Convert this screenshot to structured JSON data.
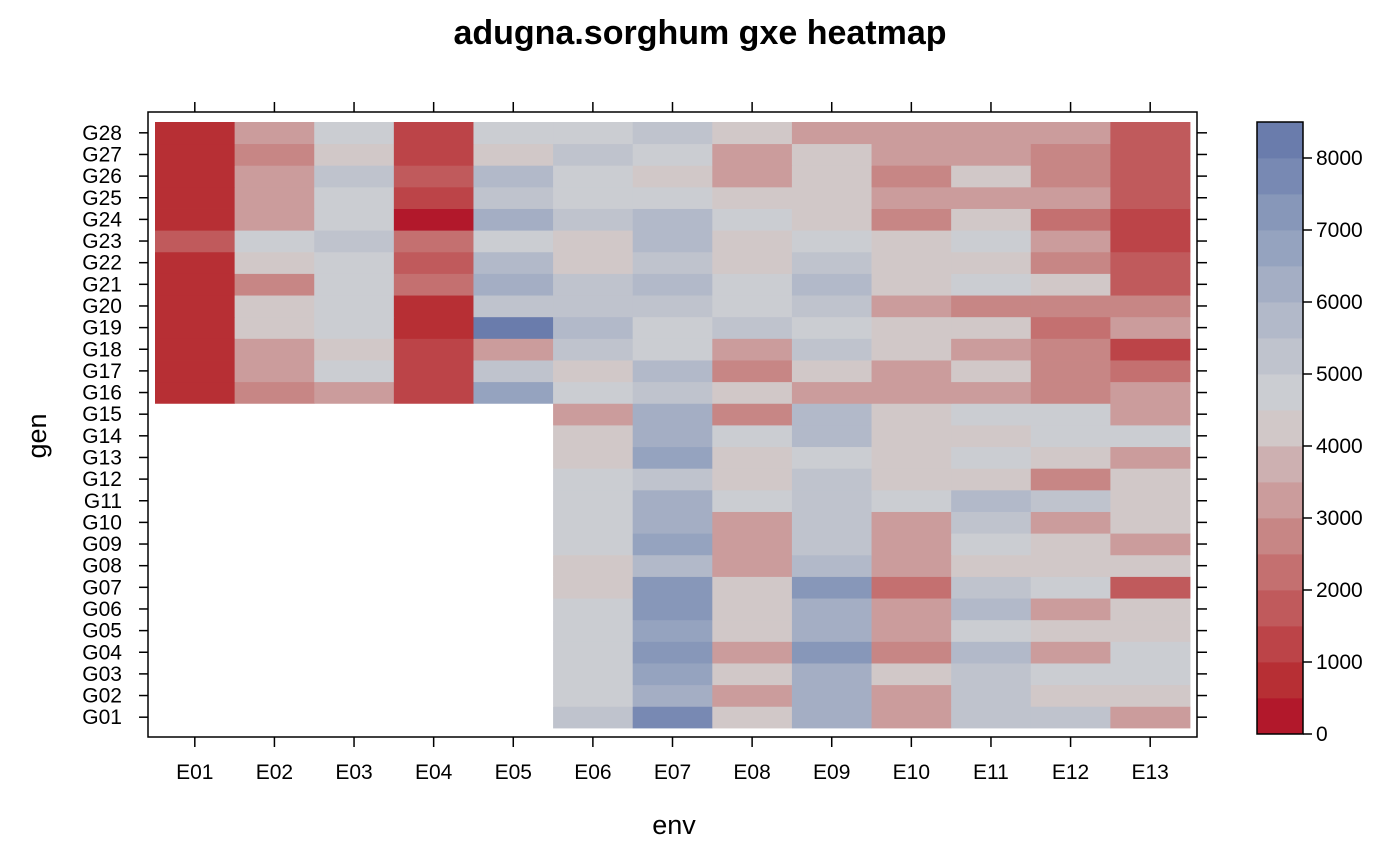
{
  "chart_data": {
    "type": "heatmap",
    "title": "adugna.sorghum gxe heatmap",
    "xlabel": "env",
    "ylabel": "gen",
    "x_categories": [
      "E01",
      "E02",
      "E03",
      "E04",
      "E05",
      "E06",
      "E07",
      "E08",
      "E09",
      "E10",
      "E11",
      "E12",
      "E13"
    ],
    "y_categories": [
      "G01",
      "G02",
      "G03",
      "G04",
      "G05",
      "G06",
      "G07",
      "G08",
      "G09",
      "G10",
      "G11",
      "G12",
      "G13",
      "G14",
      "G15",
      "G16",
      "G17",
      "G18",
      "G19",
      "G20",
      "G21",
      "G22",
      "G23",
      "G24",
      "G25",
      "G26",
      "G27",
      "G28"
    ],
    "values": [
      [
        null,
        null,
        null,
        null,
        null,
        5100,
        7900,
        4400,
        6300,
        3300,
        5100,
        5100,
        3300
      ],
      [
        null,
        null,
        null,
        null,
        null,
        4700,
        6300,
        3300,
        6300,
        3300,
        5100,
        4100,
        4100
      ],
      [
        null,
        null,
        null,
        null,
        null,
        4700,
        6800,
        4100,
        6300,
        4100,
        5100,
        4700,
        4700
      ],
      [
        null,
        null,
        null,
        null,
        null,
        4700,
        7300,
        3300,
        7300,
        2800,
        5600,
        3300,
        4700
      ],
      [
        null,
        null,
        null,
        null,
        null,
        4700,
        6800,
        4100,
        6300,
        3300,
        4700,
        4100,
        4100
      ],
      [
        null,
        null,
        null,
        null,
        null,
        4700,
        7300,
        4100,
        6300,
        3300,
        5600,
        3300,
        4100
      ],
      [
        null,
        null,
        null,
        null,
        null,
        4100,
        7300,
        4100,
        7300,
        2300,
        5100,
        4700,
        1800
      ],
      [
        null,
        null,
        null,
        null,
        null,
        4100,
        5600,
        3300,
        5600,
        3300,
        4100,
        4100,
        4100
      ],
      [
        null,
        null,
        null,
        null,
        null,
        4700,
        6800,
        3300,
        5100,
        3300,
        4700,
        4100,
        3300
      ],
      [
        null,
        null,
        null,
        null,
        null,
        4700,
        6300,
        3300,
        5100,
        3300,
        5100,
        3300,
        4100
      ],
      [
        null,
        null,
        null,
        null,
        null,
        4700,
        6300,
        4700,
        5100,
        4700,
        5600,
        5100,
        4100
      ],
      [
        null,
        null,
        null,
        null,
        null,
        4700,
        5100,
        4100,
        5100,
        4100,
        4100,
        2800,
        4100
      ],
      [
        null,
        null,
        null,
        null,
        null,
        4100,
        6800,
        4100,
        4700,
        4100,
        4700,
        4100,
        3300
      ],
      [
        null,
        null,
        null,
        null,
        null,
        4100,
        6300,
        4700,
        5600,
        4100,
        4100,
        4700,
        4700
      ],
      [
        null,
        null,
        null,
        null,
        null,
        3300,
        6300,
        2800,
        5600,
        4100,
        4700,
        4700,
        3300
      ],
      [
        600,
        2800,
        3300,
        1300,
        6800,
        4700,
        5100,
        4100,
        3300,
        3300,
        3300,
        2800,
        3300
      ],
      [
        600,
        3300,
        4700,
        1300,
        5100,
        4100,
        5600,
        2800,
        4100,
        3300,
        4100,
        2800,
        2300
      ],
      [
        600,
        3300,
        4100,
        1300,
        3300,
        5100,
        4700,
        3300,
        5100,
        4100,
        3300,
        2800,
        1300
      ],
      [
        600,
        4100,
        4700,
        600,
        8300,
        5600,
        4700,
        5100,
        4700,
        4100,
        4100,
        2300,
        3300
      ],
      [
        600,
        4100,
        4700,
        600,
        5100,
        5100,
        5100,
        4700,
        5100,
        3300,
        2800,
        2800,
        2800
      ],
      [
        600,
        2800,
        4700,
        2300,
        6300,
        5100,
        5600,
        4700,
        5600,
        4100,
        4700,
        4100,
        1800
      ],
      [
        600,
        4100,
        4700,
        1800,
        5600,
        4100,
        5100,
        4100,
        5100,
        4100,
        4100,
        2800,
        1800
      ],
      [
        1800,
        4700,
        5100,
        2300,
        4700,
        4100,
        5600,
        4100,
        4700,
        4100,
        4700,
        3300,
        1300
      ],
      [
        600,
        3300,
        4700,
        100,
        6300,
        5100,
        5600,
        4700,
        4100,
        2800,
        4100,
        2300,
        1300
      ],
      [
        600,
        3300,
        4700,
        1300,
        5100,
        4700,
        4700,
        4100,
        4100,
        3300,
        3300,
        3300,
        1800
      ],
      [
        600,
        3300,
        5100,
        1800,
        5600,
        4700,
        4100,
        3300,
        4100,
        2800,
        4100,
        2800,
        1800
      ],
      [
        600,
        2800,
        4100,
        1300,
        4100,
        5100,
        4700,
        3300,
        4100,
        3300,
        3300,
        2800,
        1800
      ],
      [
        600,
        3300,
        4700,
        1300,
        4700,
        4700,
        5100,
        4100,
        3300,
        3300,
        3300,
        3300,
        1800
      ]
    ],
    "colorbar": {
      "min": 0,
      "max": 8500,
      "step": 500,
      "ticks": [
        0,
        1000,
        2000,
        3000,
        4000,
        5000,
        6000,
        7000,
        8000
      ],
      "tick_labels": [
        "0",
        "1000",
        "2000",
        "3000",
        "4000",
        "5000",
        "6000",
        "7000",
        "8000"
      ],
      "colors": [
        "#b2182b",
        "#b72f34",
        "#bc4448",
        "#c05a5c",
        "#c47070",
        "#c78685",
        "#cb9c9c",
        "#cdb0b1",
        "#d1c8c8",
        "#cbcdd2",
        "#bfc3cd",
        "#b2b9c9",
        "#a4aec4",
        "#95a3bf",
        "#8797b9",
        "#7889b3",
        "#6a7cac",
        "#5a6ea6",
        "#3a5a9c"
      ],
      "missing_color": "#ffffff"
    }
  }
}
